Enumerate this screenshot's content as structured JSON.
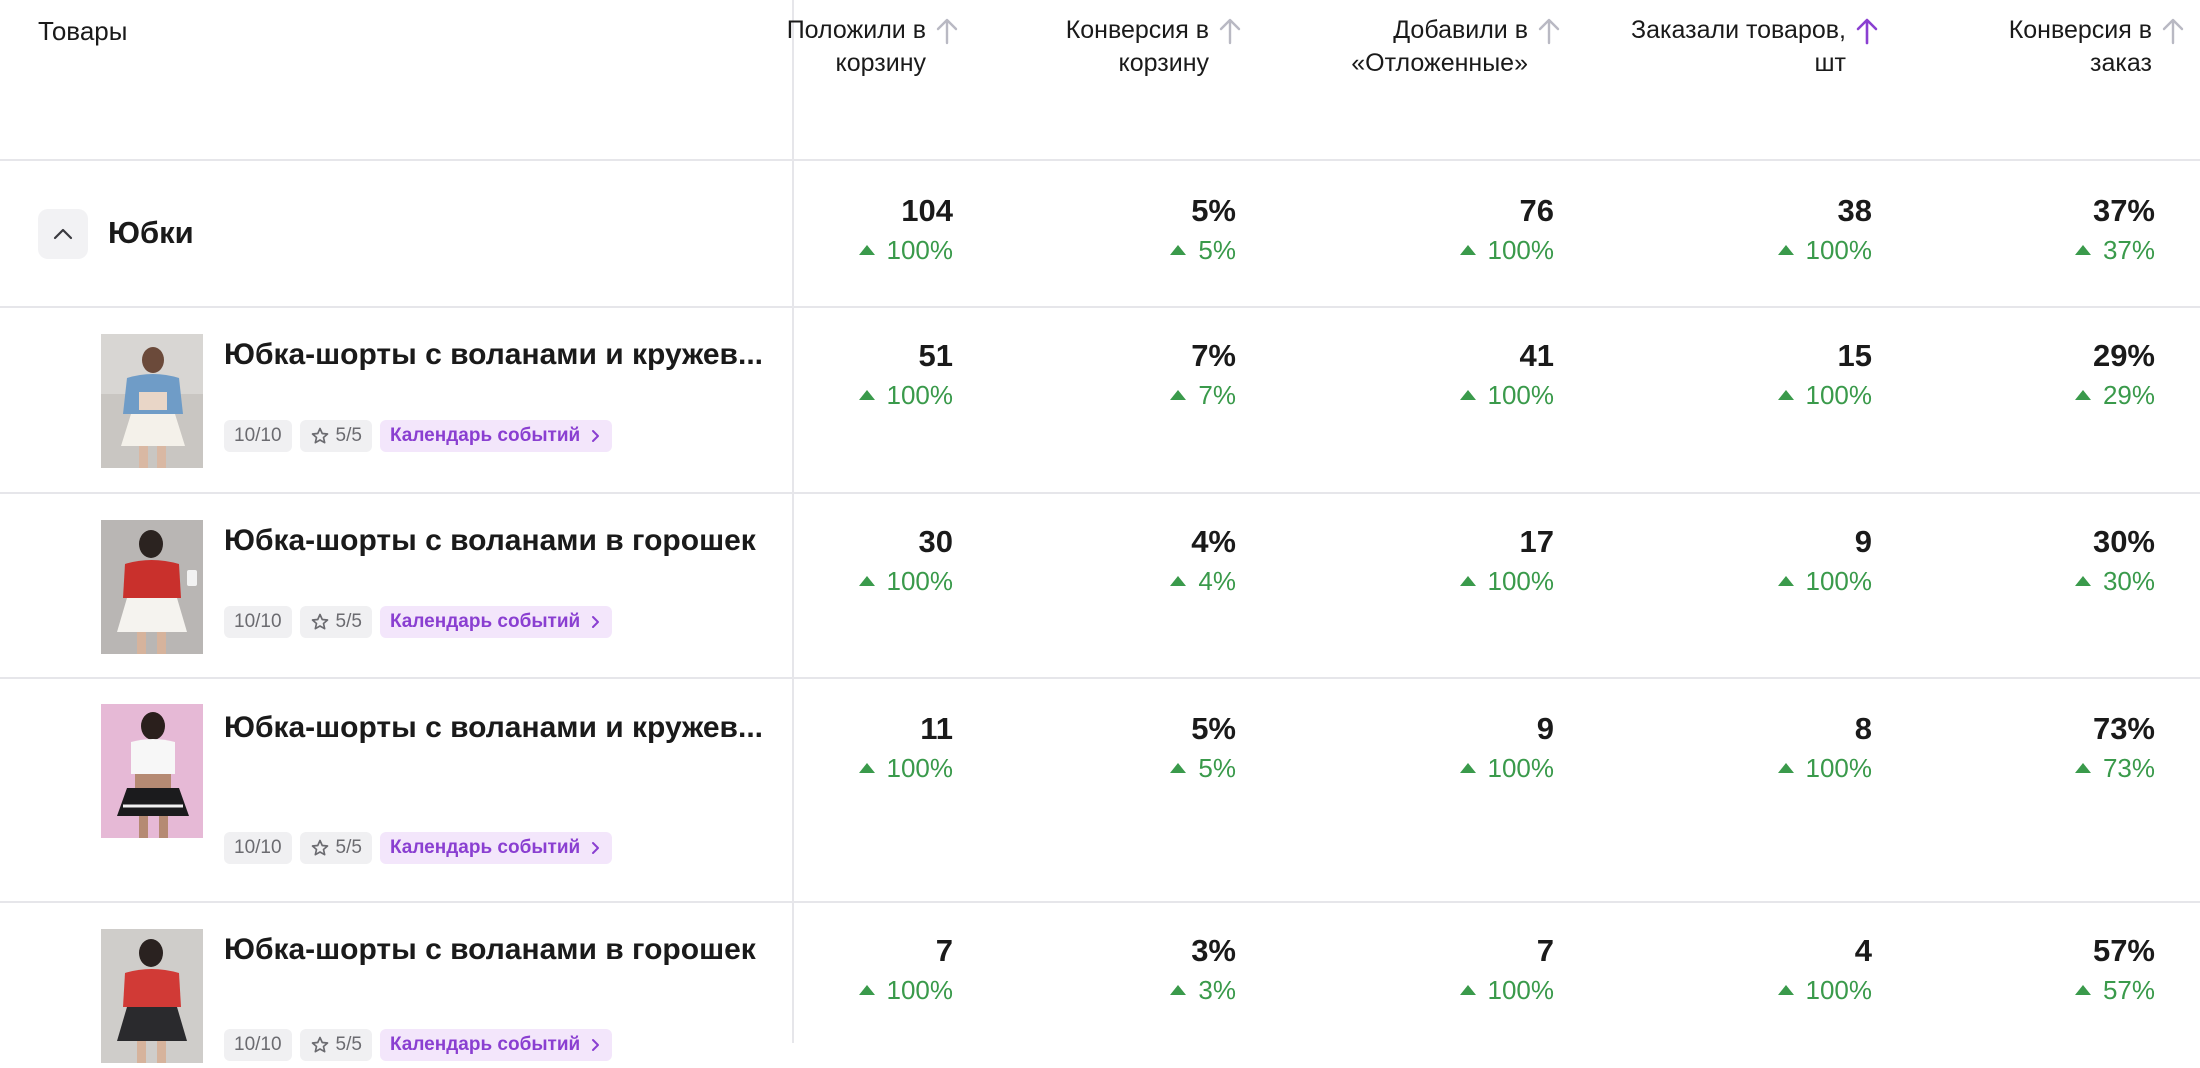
{
  "header": {
    "products_label": "Товары",
    "columns": [
      {
        "line1": "Положили в",
        "line2": "корзину",
        "sort_active": false
      },
      {
        "line1": "Конверсия в",
        "line2": "корзину",
        "sort_active": false
      },
      {
        "line1": "Добавили в",
        "line2": "«Отложенные»",
        "sort_active": false
      },
      {
        "line1": "Заказали товаров,",
        "line2": "шт",
        "sort_active": true
      },
      {
        "line1": "Конверсия в",
        "line2": "заказ",
        "sort_active": false
      }
    ]
  },
  "colors": {
    "accent": "#8a3fd1",
    "positive": "#3a9a4b",
    "sort_inactive": "#b9b9c3",
    "divider": "#e6e6ea"
  },
  "group": {
    "title": "Юбки",
    "toggle_icon": "chevron-up-icon",
    "metrics": [
      {
        "value": "104",
        "delta": "100%"
      },
      {
        "value": "5%",
        "delta": "5%"
      },
      {
        "value": "76",
        "delta": "100%"
      },
      {
        "value": "38",
        "delta": "100%"
      },
      {
        "value": "37%",
        "delta": "37%"
      }
    ]
  },
  "products": [
    {
      "name": "Юбка-шорты с воланами и кружев...",
      "rating_count": "10/10",
      "stars": "5/5",
      "calendar_label": "Календарь событий",
      "metrics": [
        {
          "value": "51",
          "delta": "100%"
        },
        {
          "value": "7%",
          "delta": "7%"
        },
        {
          "value": "41",
          "delta": "100%"
        },
        {
          "value": "15",
          "delta": "100%"
        },
        {
          "value": "29%",
          "delta": "29%"
        }
      ]
    },
    {
      "name": "Юбка-шорты с воланами в горошек",
      "rating_count": "10/10",
      "stars": "5/5",
      "calendar_label": "Календарь событий",
      "metrics": [
        {
          "value": "30",
          "delta": "100%"
        },
        {
          "value": "4%",
          "delta": "4%"
        },
        {
          "value": "17",
          "delta": "100%"
        },
        {
          "value": "9",
          "delta": "100%"
        },
        {
          "value": "30%",
          "delta": "30%"
        }
      ]
    },
    {
      "name": "Юбка-шорты с воланами и кружев...",
      "rating_count": "10/10",
      "stars": "5/5",
      "calendar_label": "Календарь событий",
      "metrics": [
        {
          "value": "11",
          "delta": "100%"
        },
        {
          "value": "5%",
          "delta": "5%"
        },
        {
          "value": "9",
          "delta": "100%"
        },
        {
          "value": "8",
          "delta": "100%"
        },
        {
          "value": "73%",
          "delta": "73%"
        }
      ]
    },
    {
      "name": "Юбка-шорты с воланами в горошек",
      "rating_count": "10/10",
      "stars": "5/5",
      "calendar_label": "Календарь событий",
      "metrics": [
        {
          "value": "7",
          "delta": "100%"
        },
        {
          "value": "3%",
          "delta": "3%"
        },
        {
          "value": "7",
          "delta": "100%"
        },
        {
          "value": "4",
          "delta": "100%"
        },
        {
          "value": "57%",
          "delta": "57%"
        }
      ]
    }
  ]
}
